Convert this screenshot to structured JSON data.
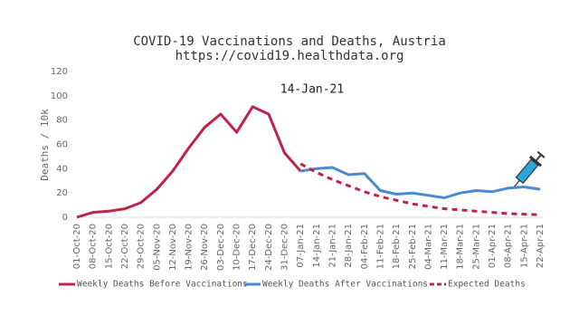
{
  "chart_data": {
    "type": "line",
    "title": "COVID-19 Vaccinations and Deaths, Austria",
    "subtitle": "https://covid19.healthdata.org",
    "annotation": "14-Jan-21",
    "ylabel": "Deaths / 10k",
    "categories": [
      "01-Oct-20",
      "08-Oct-20",
      "15-Oct-20",
      "22-Oct-20",
      "29-Oct-20",
      "05-Nov-20",
      "12-Nov-20",
      "19-Nov-20",
      "26-Nov-20",
      "03-Dec-20",
      "10-Dec-20",
      "17-Dec-20",
      "24-Dec-20",
      "31-Dec-20",
      "07-Jan-21",
      "14-Jan-21",
      "21-Jan-21",
      "28-Jan-21",
      "04-Feb-21",
      "11-Feb-21",
      "18-Feb-21",
      "25-Feb-21",
      "04-Mar-21",
      "11-Mar-21",
      "18-Mar-21",
      "25-Mar-21",
      "01-Apr-21",
      "08-Apr-21",
      "15-Apr-21",
      "22-Apr-21"
    ],
    "series": [
      {
        "name": "Weekly Deaths Before Vaccinations",
        "color": "#c0234a",
        "dashed": false,
        "values": [
          0,
          4,
          5,
          7,
          12,
          23,
          38,
          57,
          74,
          85,
          70,
          91,
          85,
          53,
          38,
          null,
          null,
          null,
          null,
          null,
          null,
          null,
          null,
          null,
          null,
          null,
          null,
          null,
          null,
          null
        ]
      },
      {
        "name": "Weekly Deaths After Vaccinations",
        "color": "#4a8ad0",
        "dashed": false,
        "values": [
          null,
          null,
          null,
          null,
          null,
          null,
          null,
          null,
          null,
          null,
          null,
          null,
          null,
          null,
          38,
          40,
          41,
          35,
          36,
          22,
          19,
          20,
          18,
          16,
          20,
          22,
          21,
          24,
          25,
          23
        ]
      },
      {
        "name": "Expected Deaths",
        "color": "#c0234a",
        "dashed": true,
        "values": [
          null,
          null,
          null,
          null,
          null,
          null,
          null,
          null,
          null,
          null,
          null,
          null,
          null,
          null,
          44,
          37,
          31,
          26,
          21,
          17,
          14,
          11,
          9,
          7,
          6,
          5,
          4,
          3,
          2.5,
          2
        ]
      }
    ],
    "ylim": [
      0,
      120
    ],
    "yticks": [
      0,
      20,
      40,
      60,
      80,
      100,
      120
    ],
    "grid": false
  }
}
